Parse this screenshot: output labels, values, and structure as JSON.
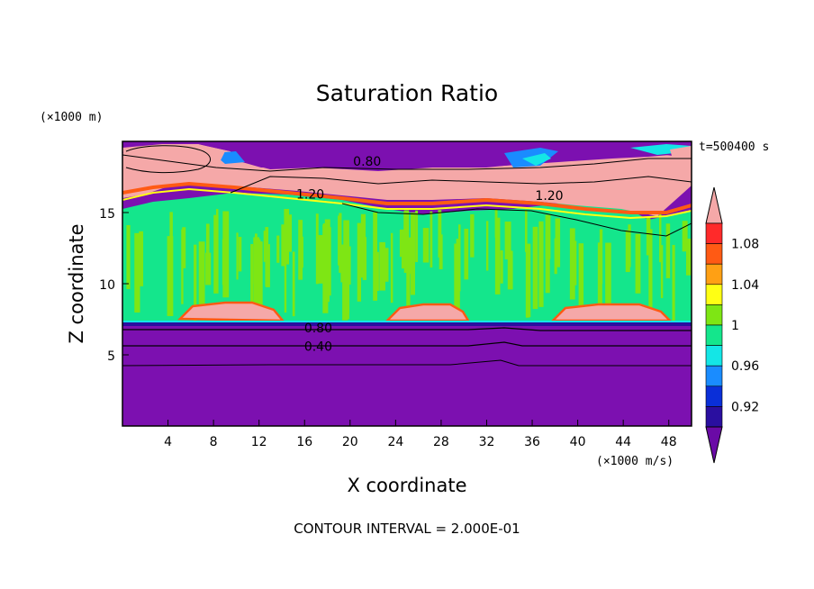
{
  "chart_data": {
    "type": "heatmap",
    "title": "Saturation Ratio",
    "xlabel": "X coordinate",
    "ylabel": "Z coordinate",
    "x_unit_label": "(×1000 m/s)",
    "y_unit_label": "(×1000 m)",
    "time_label": "t=500400 s",
    "footer": "CONTOUR INTERVAL = 2.000E-01",
    "xlim": [
      0,
      50
    ],
    "ylim": [
      0,
      20
    ],
    "x_ticks": [
      "4",
      "8",
      "12",
      "16",
      "20",
      "24",
      "28",
      "32",
      "36",
      "40",
      "44",
      "48"
    ],
    "x_tick_values": [
      4,
      8,
      12,
      16,
      20,
      24,
      28,
      32,
      36,
      40,
      44,
      48
    ],
    "y_ticks": [
      "5",
      "10",
      "15"
    ],
    "y_tick_values": [
      5,
      10,
      15
    ],
    "contour_labels": [
      {
        "text": "0.80",
        "x": 21.5,
        "z": 18.6
      },
      {
        "text": "1.20",
        "x": 16.5,
        "z": 16.3
      },
      {
        "text": "1.20",
        "x": 37.5,
        "z": 16.2
      },
      {
        "text": "0.80",
        "x": 17.2,
        "z": 6.9
      },
      {
        "text": "0.40",
        "x": 17.2,
        "z": 5.6
      }
    ],
    "colorbar": {
      "labels": [
        "1.08",
        "1.04",
        "1",
        "0.96",
        "0.92"
      ],
      "levels": [
        0.9,
        0.92,
        0.94,
        0.96,
        0.98,
        1.0,
        1.02,
        1.04,
        1.06,
        1.08,
        1.1
      ],
      "colors": [
        "#6a0aa6",
        "#2a0fa0",
        "#0a2fd8",
        "#1a8cff",
        "#14e6e6",
        "#14e68c",
        "#7ee614",
        "#ffff14",
        "#ffa014",
        "#ff5a14",
        "#ff2a2a",
        "#f5a8a8"
      ],
      "extend": "both"
    },
    "regions": {
      "lower_band_color": "#7c10b0",
      "upper_band_color": "#7c10b0",
      "cloud_layer_color": "#f5a8a8",
      "mid_field_color": "#14e68c",
      "mid_streak_color": "#7ee614"
    }
  }
}
